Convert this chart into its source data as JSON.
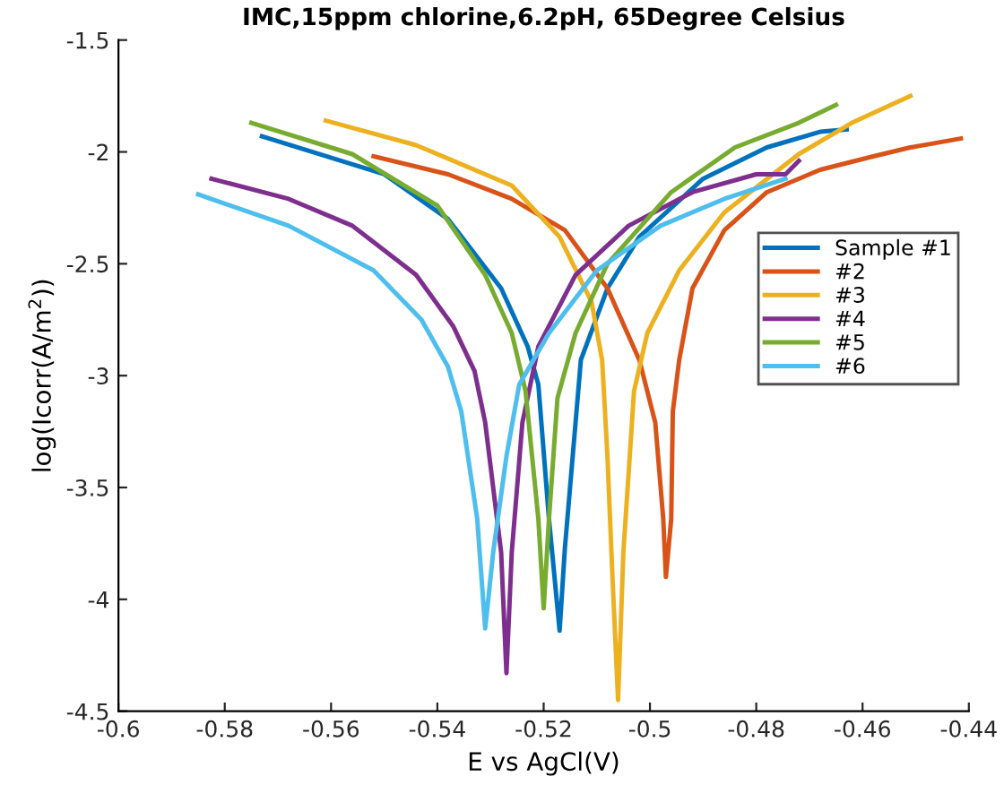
{
  "chart_data": {
    "type": "line",
    "title": "IMC,15ppm chlorine,6.2pH, 65Degree Celsius",
    "xlabel": "E vs AgCl(V)",
    "ylabel": "log(Icorr(A/m$^{2}$))",
    "xlim": [
      -0.6,
      -0.44
    ],
    "xticks": [
      -0.6,
      -0.58,
      -0.56,
      -0.54,
      -0.52,
      -0.5,
      -0.48,
      -0.46,
      -0.44
    ],
    "ylim": [
      -4.5,
      -1.5
    ],
    "yticks": [
      -4.5,
      -4,
      -3.5,
      -3,
      -2.5,
      -2,
      -1.5
    ],
    "grid": false,
    "legend": "right",
    "marker": "none",
    "line_style": "solid",
    "series": [
      {
        "name": "Sample #1",
        "color": "#0072bd",
        "x": [
          -0.573,
          -0.55,
          -0.538,
          -0.528,
          -0.523,
          -0.521,
          -0.519,
          -0.517,
          -0.516,
          -0.514,
          -0.513,
          -0.508,
          -0.502,
          -0.49,
          -0.478,
          -0.468,
          -0.463
        ],
        "values": [
          -1.93,
          -2.1,
          -2.3,
          -2.61,
          -2.87,
          -3.04,
          -3.64,
          -4.14,
          -3.77,
          -3.21,
          -2.93,
          -2.61,
          -2.38,
          -2.12,
          -1.98,
          -1.91,
          -1.9
        ]
      },
      {
        "name": "#2",
        "color": "#d95319",
        "x": [
          -0.552,
          -0.538,
          -0.526,
          -0.516,
          -0.508,
          -0.502,
          -0.499,
          -0.4975,
          -0.497,
          -0.496,
          -0.4957,
          -0.4945,
          -0.492,
          -0.486,
          -0.478,
          -0.468,
          -0.458,
          -0.451,
          -0.4415
        ],
        "values": [
          -2.02,
          -2.1,
          -2.21,
          -2.35,
          -2.61,
          -2.93,
          -3.21,
          -3.64,
          -3.9,
          -3.64,
          -3.16,
          -2.93,
          -2.61,
          -2.35,
          -2.18,
          -2.08,
          -2.02,
          -1.98,
          -1.94
        ]
      },
      {
        "name": "#3",
        "color": "#edb120",
        "x": [
          -0.561,
          -0.544,
          -0.526,
          -0.517,
          -0.511,
          -0.509,
          -0.508,
          -0.507,
          -0.506,
          -0.505,
          -0.503,
          -0.5005,
          -0.4945,
          -0.486,
          -0.472,
          -0.462,
          -0.451
        ],
        "values": [
          -1.86,
          -1.97,
          -2.15,
          -2.38,
          -2.67,
          -2.93,
          -3.36,
          -3.93,
          -4.45,
          -3.79,
          -3.07,
          -2.81,
          -2.53,
          -2.27,
          -2.01,
          -1.87,
          -1.75
        ]
      },
      {
        "name": "#4",
        "color": "#7e2f8e",
        "x": [
          -0.5825,
          -0.568,
          -0.556,
          -0.544,
          -0.537,
          -0.533,
          -0.531,
          -0.528,
          -0.527,
          -0.526,
          -0.524,
          -0.521,
          -0.514,
          -0.504,
          -0.492,
          -0.48,
          -0.4745,
          -0.472
        ],
        "values": [
          -2.12,
          -2.21,
          -2.33,
          -2.55,
          -2.78,
          -2.98,
          -3.21,
          -3.79,
          -4.33,
          -3.79,
          -3.21,
          -2.87,
          -2.55,
          -2.33,
          -2.18,
          -2.1,
          -2.1,
          -2.04
        ]
      },
      {
        "name": "#5",
        "color": "#77ac30",
        "x": [
          -0.575,
          -0.556,
          -0.54,
          -0.531,
          -0.526,
          -0.5234,
          -0.521,
          -0.52,
          -0.519,
          -0.5174,
          -0.514,
          -0.508,
          -0.496,
          -0.484,
          -0.472,
          -0.465
        ],
        "values": [
          -1.87,
          -2.01,
          -2.24,
          -2.55,
          -2.81,
          -3.07,
          -3.64,
          -4.04,
          -3.64,
          -3.1,
          -2.81,
          -2.5,
          -2.18,
          -1.98,
          -1.87,
          -1.79
        ]
      },
      {
        "name": "#6",
        "color": "#4dbeee",
        "x": [
          -0.585,
          -0.568,
          -0.552,
          -0.543,
          -0.538,
          -0.5355,
          -0.5325,
          -0.531,
          -0.5295,
          -0.527,
          -0.5246,
          -0.519,
          -0.51,
          -0.498,
          -0.486,
          -0.4745
        ],
        "values": [
          -2.19,
          -2.33,
          -2.53,
          -2.75,
          -2.96,
          -3.16,
          -3.64,
          -4.13,
          -3.79,
          -3.36,
          -3.04,
          -2.81,
          -2.53,
          -2.33,
          -2.21,
          -2.12
        ]
      }
    ]
  }
}
